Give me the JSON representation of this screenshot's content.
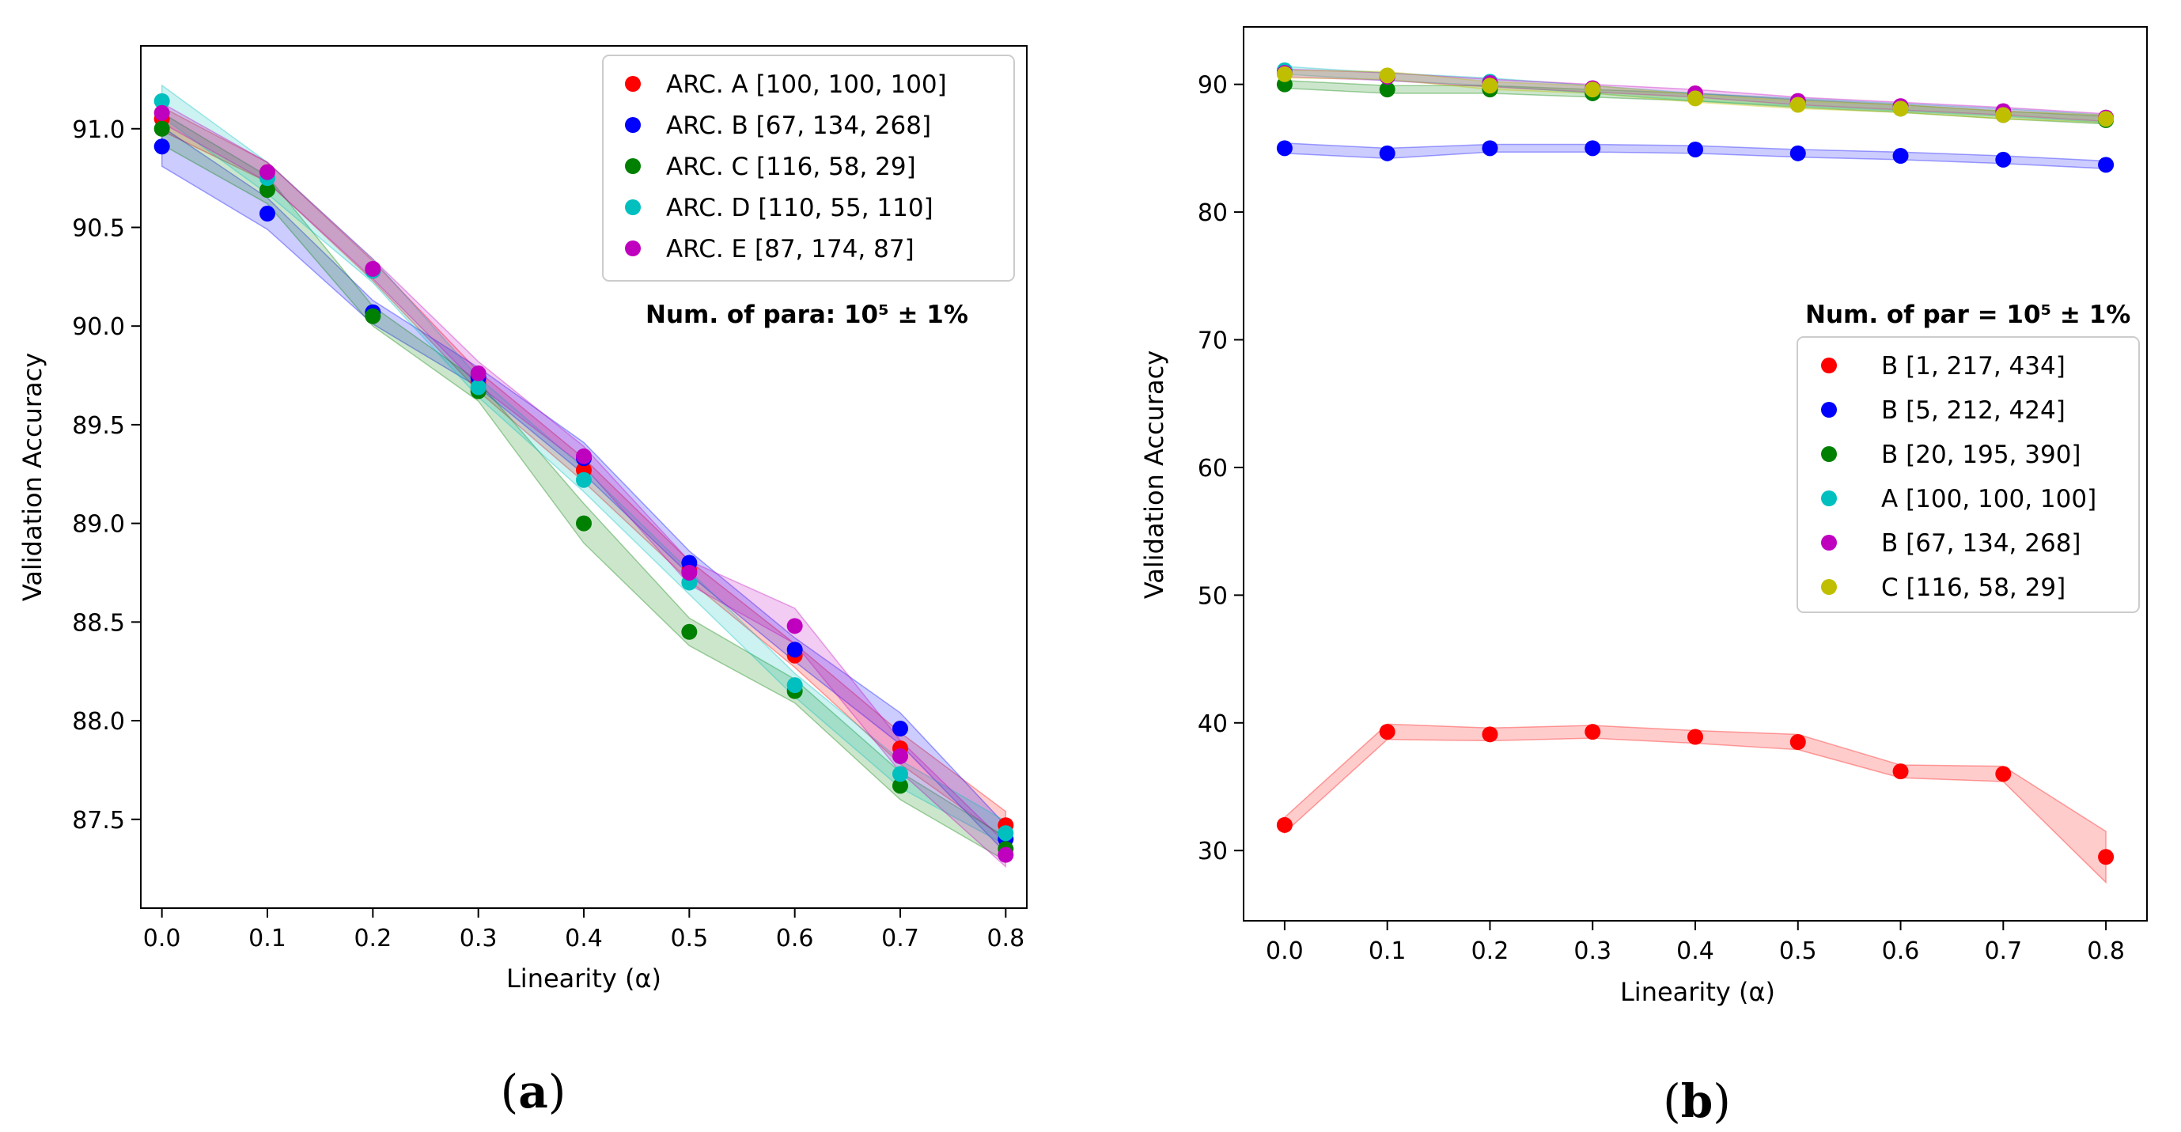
{
  "chart_data": [
    {
      "type": "scatter",
      "panel": "a",
      "caption_letter": "a",
      "xlabel": "Linearity (α)",
      "ylabel": "Validation Accuracy",
      "x": [
        0.0,
        0.1,
        0.2,
        0.3,
        0.4,
        0.5,
        0.6,
        0.7,
        0.8
      ],
      "xlim": [
        -0.02,
        0.82
      ],
      "ylim": [
        87.05,
        91.42
      ],
      "xticks": [
        "0.0",
        "0.1",
        "0.2",
        "0.3",
        "0.4",
        "0.5",
        "0.6",
        "0.7",
        "0.8"
      ],
      "yticks": [
        "87.5",
        "88.0",
        "88.5",
        "89.0",
        "89.5",
        "90.0",
        "90.5",
        "91.0"
      ],
      "legend_position": "top-right",
      "annotation": "Num. of para: 10⁵ ± 1%",
      "series": [
        {
          "name": "ARC. A [100, 100, 100]",
          "color": "#ff0000",
          "values": [
            91.05,
            90.78,
            90.28,
            89.72,
            89.27,
            88.76,
            88.33,
            87.86,
            87.47
          ],
          "band": [
            0.06,
            0.05,
            0.05,
            0.05,
            0.06,
            0.05,
            0.06,
            0.08,
            0.07
          ]
        },
        {
          "name": "ARC. B [67, 134, 268]",
          "color": "#0000ff",
          "values": [
            90.91,
            90.57,
            90.07,
            89.74,
            89.33,
            88.8,
            88.36,
            87.96,
            87.4
          ],
          "band": [
            0.1,
            0.08,
            0.06,
            0.05,
            0.08,
            0.06,
            0.06,
            0.08,
            0.07
          ]
        },
        {
          "name": "ARC. C [116, 58, 29]",
          "color": "#008000",
          "values": [
            91.0,
            90.69,
            90.05,
            89.67,
            89.0,
            88.45,
            88.15,
            87.67,
            87.35
          ],
          "band": [
            0.08,
            0.07,
            0.05,
            0.05,
            0.1,
            0.07,
            0.06,
            0.07,
            0.06
          ]
        },
        {
          "name": "ARC. D [110, 55, 110]",
          "color": "#00bfbf",
          "values": [
            91.14,
            90.75,
            90.28,
            89.69,
            89.22,
            88.7,
            88.18,
            87.73,
            87.43
          ],
          "band": [
            0.08,
            0.08,
            0.06,
            0.05,
            0.06,
            0.06,
            0.06,
            0.07,
            0.06
          ]
        },
        {
          "name": "ARC. E [87, 174, 87]",
          "color": "#bf00bf",
          "values": [
            91.08,
            90.78,
            90.29,
            89.76,
            89.34,
            88.75,
            88.48,
            87.82,
            87.32
          ],
          "band": [
            0.05,
            0.05,
            0.05,
            0.06,
            0.05,
            0.06,
            0.09,
            0.08,
            0.06
          ]
        }
      ]
    },
    {
      "type": "scatter",
      "panel": "b",
      "caption_letter": "b",
      "xlabel": "Linearity (α)",
      "ylabel": "Validation Accuracy",
      "x": [
        0.0,
        0.1,
        0.2,
        0.3,
        0.4,
        0.5,
        0.6,
        0.7,
        0.8
      ],
      "xlim": [
        -0.04,
        0.84
      ],
      "ylim": [
        24.5,
        94.5
      ],
      "xticks": [
        "0.0",
        "0.1",
        "0.2",
        "0.3",
        "0.4",
        "0.5",
        "0.6",
        "0.7",
        "0.8"
      ],
      "yticks": [
        "30",
        "40",
        "50",
        "60",
        "70",
        "80",
        "90"
      ],
      "legend_position": "center-right",
      "annotation": "Num. of par = 10⁵ ± 1%",
      "series": [
        {
          "name": "B [1, 217, 434]",
          "color": "#ff0000",
          "values": [
            32.0,
            39.3,
            39.1,
            39.3,
            38.9,
            38.5,
            36.2,
            36.0,
            29.5
          ],
          "band": [
            0.6,
            0.6,
            0.5,
            0.5,
            0.5,
            0.6,
            0.5,
            0.6,
            2.0
          ]
        },
        {
          "name": "B [5, 212, 424]",
          "color": "#0000ff",
          "values": [
            85.0,
            84.6,
            85.0,
            85.0,
            84.9,
            84.6,
            84.4,
            84.1,
            83.7
          ],
          "band": [
            0.4,
            0.4,
            0.3,
            0.3,
            0.3,
            0.3,
            0.3,
            0.3,
            0.3
          ]
        },
        {
          "name": "B [20, 195, 390]",
          "color": "#008000",
          "values": [
            90.0,
            89.6,
            89.6,
            89.3,
            89.0,
            88.5,
            88.1,
            87.6,
            87.2
          ],
          "band": [
            0.3,
            0.3,
            0.3,
            0.3,
            0.3,
            0.3,
            0.3,
            0.3,
            0.3
          ]
        },
        {
          "name": "A [100, 100, 100]",
          "color": "#00bfbf",
          "values": [
            91.1,
            90.6,
            90.2,
            89.6,
            89.0,
            88.6,
            88.2,
            87.8,
            87.3
          ],
          "band": [
            0.3,
            0.3,
            0.3,
            0.3,
            0.3,
            0.3,
            0.3,
            0.3,
            0.3
          ]
        },
        {
          "name": "B [67, 134, 268]",
          "color": "#bf00bf",
          "values": [
            90.9,
            90.6,
            90.1,
            89.7,
            89.3,
            88.7,
            88.3,
            87.9,
            87.4
          ],
          "band": [
            0.3,
            0.3,
            0.3,
            0.3,
            0.3,
            0.3,
            0.3,
            0.3,
            0.3
          ]
        },
        {
          "name": "C [116, 58, 29]",
          "color": "#bfbf00",
          "values": [
            90.8,
            90.7,
            89.9,
            89.6,
            88.9,
            88.4,
            88.1,
            87.6,
            87.3
          ],
          "band": [
            0.3,
            0.3,
            0.3,
            0.3,
            0.3,
            0.3,
            0.3,
            0.3,
            0.3
          ]
        }
      ]
    }
  ]
}
